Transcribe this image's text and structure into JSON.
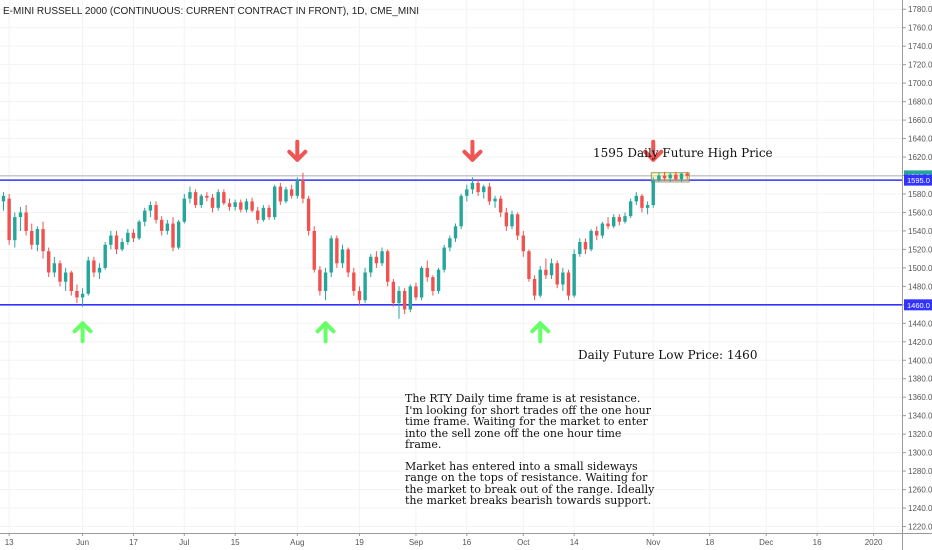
{
  "title": "E-MINI RUSSELL 2000 (CONTINUOUS: CURRENT CONTRACT IN FRONT), 1D, CME_MINI",
  "annotations": {
    "high_label": "1595 Daily Future High Price",
    "low_label": "Daily Future Low Price: 1460",
    "note_p1": "The RTY Daily time frame is at resistance. I'm looking for short trades off the one hour time frame.  Waiting for the market to enter into the sell zone off the one hour time frame.",
    "note_p2": "Market has entered into a small sideways range on the tops of resistance. Waiting for the market to break out of the range. Ideally the market breaks bearish towards support."
  },
  "colors": {
    "up": "#26a69a",
    "down": "#ef5350",
    "level": "#3333ff",
    "last": "#b0b0b0",
    "up_arrow": "#66ff66",
    "down_arrow": "#f05555",
    "range_box": "#f5f07a"
  },
  "chart_data": {
    "type": "candlestick",
    "ylim": [
      1213,
      1790
    ],
    "y_ticks": [
      1220,
      1240,
      1260,
      1280,
      1300,
      1320,
      1340,
      1360,
      1380,
      1400,
      1420,
      1440,
      1460,
      1480,
      1500,
      1520,
      1540,
      1560,
      1580,
      1600,
      1620,
      1640,
      1660,
      1680,
      1700,
      1720,
      1740,
      1760,
      1780
    ],
    "y_tick_labels": [
      "1220.0",
      "1240.0",
      "1260.0",
      "1280.0",
      "1300.0",
      "1320.0",
      "1340.0",
      "1360.0",
      "1380.0",
      "1400.0",
      "1420.0",
      "1440.0",
      "1460.0",
      "1480.0",
      "1500.0",
      "1520.0",
      "1540.0",
      "1560.0",
      "1580.0",
      "1600.0",
      "1620.0",
      "1640.0",
      "1660.0",
      "1680.0",
      "1700.0",
      "1720.0",
      "1740.0",
      "1760.0",
      "1780.0"
    ],
    "x_ticks": [
      {
        "index": 1,
        "label": "13"
      },
      {
        "index": 14,
        "label": "Jun"
      },
      {
        "index": 23,
        "label": "17"
      },
      {
        "index": 32,
        "label": "Jul"
      },
      {
        "index": 41,
        "label": "15"
      },
      {
        "index": 52,
        "label": "Aug"
      },
      {
        "index": 63,
        "label": "19"
      },
      {
        "index": 73,
        "label": "Sep"
      },
      {
        "index": 82,
        "label": "16"
      },
      {
        "index": 92,
        "label": "Oct"
      },
      {
        "index": 101,
        "label": "14"
      },
      {
        "index": 115,
        "label": "Nov"
      },
      {
        "index": 125,
        "label": "18"
      },
      {
        "index": 135,
        "label": "Dec"
      },
      {
        "index": 144,
        "label": "16"
      },
      {
        "index": 154,
        "label": "2020"
      }
    ],
    "levels": [
      {
        "name": "resistance",
        "value": 1595,
        "label": "1595.0"
      },
      {
        "name": "support",
        "value": 1460,
        "label": "1460.0"
      }
    ],
    "last_price": {
      "value": 1599.6,
      "label": "1599.6"
    },
    "range_box": {
      "from_index": 115,
      "to_index": 121,
      "low": 1593,
      "high": 1603
    },
    "arrows": [
      {
        "type": "up",
        "index": 14,
        "price": 1440
      },
      {
        "type": "down",
        "index": 52,
        "price": 1617
      },
      {
        "type": "up",
        "index": 57,
        "price": 1440
      },
      {
        "type": "down",
        "index": 83,
        "price": 1617
      },
      {
        "type": "up",
        "index": 95,
        "price": 1440
      },
      {
        "type": "down",
        "index": 115,
        "price": 1617
      }
    ],
    "candles": [
      {
        "o": 1572,
        "h": 1582,
        "l": 1562,
        "c": 1578
      },
      {
        "o": 1575,
        "h": 1580,
        "l": 1525,
        "c": 1530
      },
      {
        "o": 1530,
        "h": 1560,
        "l": 1522,
        "c": 1555
      },
      {
        "o": 1555,
        "h": 1566,
        "l": 1540,
        "c": 1560
      },
      {
        "o": 1560,
        "h": 1568,
        "l": 1535,
        "c": 1540
      },
      {
        "o": 1540,
        "h": 1548,
        "l": 1520,
        "c": 1525
      },
      {
        "o": 1525,
        "h": 1545,
        "l": 1518,
        "c": 1542
      },
      {
        "o": 1542,
        "h": 1550,
        "l": 1510,
        "c": 1518
      },
      {
        "o": 1518,
        "h": 1522,
        "l": 1490,
        "c": 1495
      },
      {
        "o": 1495,
        "h": 1512,
        "l": 1490,
        "c": 1505
      },
      {
        "o": 1505,
        "h": 1508,
        "l": 1480,
        "c": 1485
      },
      {
        "o": 1485,
        "h": 1500,
        "l": 1475,
        "c": 1495
      },
      {
        "o": 1495,
        "h": 1497,
        "l": 1470,
        "c": 1475
      },
      {
        "o": 1475,
        "h": 1482,
        "l": 1462,
        "c": 1468
      },
      {
        "o": 1468,
        "h": 1478,
        "l": 1458,
        "c": 1472
      },
      {
        "o": 1472,
        "h": 1512,
        "l": 1470,
        "c": 1508
      },
      {
        "o": 1508,
        "h": 1512,
        "l": 1490,
        "c": 1495
      },
      {
        "o": 1495,
        "h": 1505,
        "l": 1488,
        "c": 1500
      },
      {
        "o": 1500,
        "h": 1528,
        "l": 1498,
        "c": 1525
      },
      {
        "o": 1525,
        "h": 1540,
        "l": 1520,
        "c": 1535
      },
      {
        "o": 1535,
        "h": 1540,
        "l": 1515,
        "c": 1520
      },
      {
        "o": 1520,
        "h": 1532,
        "l": 1518,
        "c": 1528
      },
      {
        "o": 1528,
        "h": 1542,
        "l": 1525,
        "c": 1538
      },
      {
        "o": 1538,
        "h": 1542,
        "l": 1528,
        "c": 1532
      },
      {
        "o": 1532,
        "h": 1552,
        "l": 1530,
        "c": 1550
      },
      {
        "o": 1550,
        "h": 1565,
        "l": 1545,
        "c": 1562
      },
      {
        "o": 1562,
        "h": 1572,
        "l": 1555,
        "c": 1568
      },
      {
        "o": 1568,
        "h": 1572,
        "l": 1548,
        "c": 1552
      },
      {
        "o": 1552,
        "h": 1556,
        "l": 1535,
        "c": 1540
      },
      {
        "o": 1540,
        "h": 1552,
        "l": 1536,
        "c": 1548
      },
      {
        "o": 1548,
        "h": 1555,
        "l": 1518,
        "c": 1522
      },
      {
        "o": 1522,
        "h": 1552,
        "l": 1520,
        "c": 1550
      },
      {
        "o": 1550,
        "h": 1580,
        "l": 1548,
        "c": 1575
      },
      {
        "o": 1575,
        "h": 1588,
        "l": 1570,
        "c": 1582
      },
      {
        "o": 1582,
        "h": 1585,
        "l": 1565,
        "c": 1568
      },
      {
        "o": 1568,
        "h": 1580,
        "l": 1565,
        "c": 1578
      },
      {
        "o": 1578,
        "h": 1582,
        "l": 1572,
        "c": 1576
      },
      {
        "o": 1576,
        "h": 1580,
        "l": 1560,
        "c": 1565
      },
      {
        "o": 1565,
        "h": 1585,
        "l": 1562,
        "c": 1582
      },
      {
        "o": 1582,
        "h": 1585,
        "l": 1568,
        "c": 1570
      },
      {
        "o": 1570,
        "h": 1575,
        "l": 1562,
        "c": 1566
      },
      {
        "o": 1566,
        "h": 1574,
        "l": 1562,
        "c": 1571
      },
      {
        "o": 1571,
        "h": 1574,
        "l": 1560,
        "c": 1563
      },
      {
        "o": 1563,
        "h": 1575,
        "l": 1560,
        "c": 1572
      },
      {
        "o": 1572,
        "h": 1576,
        "l": 1560,
        "c": 1562
      },
      {
        "o": 1562,
        "h": 1566,
        "l": 1548,
        "c": 1552
      },
      {
        "o": 1552,
        "h": 1568,
        "l": 1550,
        "c": 1565
      },
      {
        "o": 1565,
        "h": 1568,
        "l": 1552,
        "c": 1555
      },
      {
        "o": 1555,
        "h": 1590,
        "l": 1552,
        "c": 1588
      },
      {
        "o": 1588,
        "h": 1592,
        "l": 1568,
        "c": 1572
      },
      {
        "o": 1572,
        "h": 1588,
        "l": 1570,
        "c": 1585
      },
      {
        "o": 1585,
        "h": 1590,
        "l": 1575,
        "c": 1578
      },
      {
        "o": 1578,
        "h": 1598,
        "l": 1575,
        "c": 1595
      },
      {
        "o": 1595,
        "h": 1603,
        "l": 1570,
        "c": 1575
      },
      {
        "o": 1575,
        "h": 1578,
        "l": 1535,
        "c": 1540
      },
      {
        "o": 1540,
        "h": 1545,
        "l": 1495,
        "c": 1498
      },
      {
        "o": 1498,
        "h": 1502,
        "l": 1470,
        "c": 1475
      },
      {
        "o": 1475,
        "h": 1500,
        "l": 1465,
        "c": 1495
      },
      {
        "o": 1495,
        "h": 1535,
        "l": 1490,
        "c": 1532
      },
      {
        "o": 1532,
        "h": 1535,
        "l": 1500,
        "c": 1505
      },
      {
        "o": 1505,
        "h": 1525,
        "l": 1500,
        "c": 1520
      },
      {
        "o": 1520,
        "h": 1522,
        "l": 1490,
        "c": 1495
      },
      {
        "o": 1495,
        "h": 1500,
        "l": 1470,
        "c": 1475
      },
      {
        "o": 1475,
        "h": 1480,
        "l": 1460,
        "c": 1465
      },
      {
        "o": 1465,
        "h": 1500,
        "l": 1462,
        "c": 1495
      },
      {
        "o": 1495,
        "h": 1515,
        "l": 1490,
        "c": 1512
      },
      {
        "o": 1512,
        "h": 1518,
        "l": 1500,
        "c": 1505
      },
      {
        "o": 1505,
        "h": 1522,
        "l": 1502,
        "c": 1518
      },
      {
        "o": 1518,
        "h": 1520,
        "l": 1480,
        "c": 1485
      },
      {
        "o": 1485,
        "h": 1488,
        "l": 1458,
        "c": 1462
      },
      {
        "o": 1462,
        "h": 1480,
        "l": 1445,
        "c": 1475
      },
      {
        "o": 1475,
        "h": 1478,
        "l": 1450,
        "c": 1455
      },
      {
        "o": 1455,
        "h": 1482,
        "l": 1452,
        "c": 1480
      },
      {
        "o": 1480,
        "h": 1484,
        "l": 1465,
        "c": 1468
      },
      {
        "o": 1468,
        "h": 1502,
        "l": 1465,
        "c": 1500
      },
      {
        "o": 1500,
        "h": 1508,
        "l": 1485,
        "c": 1490
      },
      {
        "o": 1490,
        "h": 1492,
        "l": 1470,
        "c": 1475
      },
      {
        "o": 1475,
        "h": 1500,
        "l": 1472,
        "c": 1498
      },
      {
        "o": 1498,
        "h": 1525,
        "l": 1495,
        "c": 1522
      },
      {
        "o": 1522,
        "h": 1535,
        "l": 1518,
        "c": 1532
      },
      {
        "o": 1532,
        "h": 1548,
        "l": 1528,
        "c": 1545
      },
      {
        "o": 1545,
        "h": 1580,
        "l": 1542,
        "c": 1578
      },
      {
        "o": 1578,
        "h": 1590,
        "l": 1572,
        "c": 1585
      },
      {
        "o": 1585,
        "h": 1598,
        "l": 1580,
        "c": 1592
      },
      {
        "o": 1592,
        "h": 1596,
        "l": 1578,
        "c": 1582
      },
      {
        "o": 1582,
        "h": 1590,
        "l": 1575,
        "c": 1588
      },
      {
        "o": 1588,
        "h": 1592,
        "l": 1568,
        "c": 1572
      },
      {
        "o": 1572,
        "h": 1578,
        "l": 1565,
        "c": 1575
      },
      {
        "o": 1575,
        "h": 1578,
        "l": 1555,
        "c": 1560
      },
      {
        "o": 1560,
        "h": 1565,
        "l": 1540,
        "c": 1545
      },
      {
        "o": 1545,
        "h": 1562,
        "l": 1542,
        "c": 1558
      },
      {
        "o": 1558,
        "h": 1560,
        "l": 1530,
        "c": 1535
      },
      {
        "o": 1535,
        "h": 1540,
        "l": 1512,
        "c": 1518
      },
      {
        "o": 1518,
        "h": 1520,
        "l": 1485,
        "c": 1488
      },
      {
        "o": 1488,
        "h": 1492,
        "l": 1465,
        "c": 1470
      },
      {
        "o": 1470,
        "h": 1502,
        "l": 1468,
        "c": 1498
      },
      {
        "o": 1498,
        "h": 1510,
        "l": 1488,
        "c": 1492
      },
      {
        "o": 1492,
        "h": 1510,
        "l": 1488,
        "c": 1505
      },
      {
        "o": 1505,
        "h": 1508,
        "l": 1478,
        "c": 1482
      },
      {
        "o": 1482,
        "h": 1500,
        "l": 1475,
        "c": 1495
      },
      {
        "o": 1495,
        "h": 1498,
        "l": 1465,
        "c": 1470
      },
      {
        "o": 1470,
        "h": 1520,
        "l": 1468,
        "c": 1515
      },
      {
        "o": 1515,
        "h": 1532,
        "l": 1512,
        "c": 1528
      },
      {
        "o": 1528,
        "h": 1532,
        "l": 1515,
        "c": 1520
      },
      {
        "o": 1520,
        "h": 1542,
        "l": 1518,
        "c": 1540
      },
      {
        "o": 1540,
        "h": 1545,
        "l": 1530,
        "c": 1535
      },
      {
        "o": 1535,
        "h": 1550,
        "l": 1532,
        "c": 1548
      },
      {
        "o": 1548,
        "h": 1555,
        "l": 1542,
        "c": 1545
      },
      {
        "o": 1545,
        "h": 1558,
        "l": 1543,
        "c": 1555
      },
      {
        "o": 1555,
        "h": 1558,
        "l": 1546,
        "c": 1550
      },
      {
        "o": 1550,
        "h": 1560,
        "l": 1548,
        "c": 1556
      },
      {
        "o": 1556,
        "h": 1575,
        "l": 1554,
        "c": 1572
      },
      {
        "o": 1572,
        "h": 1582,
        "l": 1568,
        "c": 1578
      },
      {
        "o": 1578,
        "h": 1580,
        "l": 1560,
        "c": 1565
      },
      {
        "o": 1565,
        "h": 1572,
        "l": 1558,
        "c": 1568
      },
      {
        "o": 1568,
        "h": 1598,
        "l": 1565,
        "c": 1595
      },
      {
        "o": 1595,
        "h": 1603,
        "l": 1593,
        "c": 1600
      },
      {
        "o": 1600,
        "h": 1604,
        "l": 1594,
        "c": 1597
      },
      {
        "o": 1597,
        "h": 1603,
        "l": 1593,
        "c": 1601
      },
      {
        "o": 1601,
        "h": 1604,
        "l": 1594,
        "c": 1596
      },
      {
        "o": 1596,
        "h": 1603,
        "l": 1593,
        "c": 1602
      },
      {
        "o": 1602,
        "h": 1604,
        "l": 1596,
        "c": 1599.6
      }
    ]
  }
}
